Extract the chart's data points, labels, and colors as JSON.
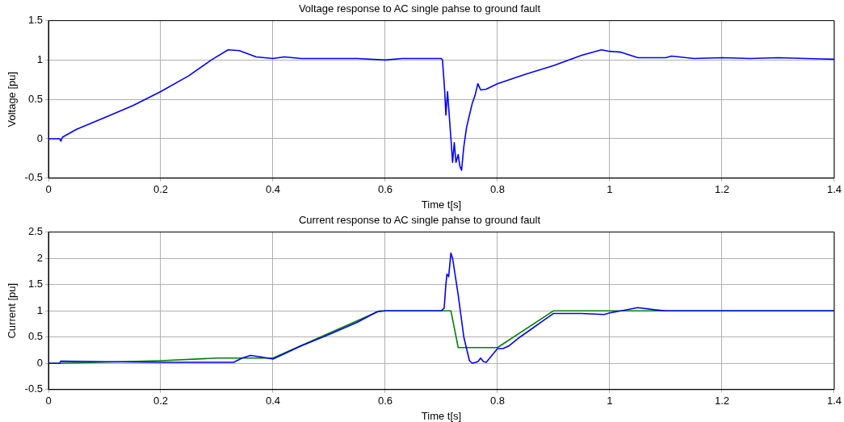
{
  "chart_data": [
    {
      "type": "line",
      "title": "Voltage response to AC single pahse to ground fault",
      "xlabel": "Time t[s]",
      "ylabel": "Voltage [pu]",
      "xlim": [
        0,
        1.4
      ],
      "xticks": [
        0,
        0.2,
        0.4,
        0.6,
        0.8,
        1,
        1.2,
        1.4
      ],
      "ylim": [
        -0.5,
        1.5
      ],
      "yticks": [
        -0.5,
        0,
        0.5,
        1,
        1.5
      ],
      "grid": true,
      "marker": "none",
      "line_style": "solid",
      "series": [
        {
          "color": "#0000ff",
          "x": [
            0,
            0.02,
            0.022,
            0.025,
            0.05,
            0.1,
            0.15,
            0.2,
            0.25,
            0.29,
            0.32,
            0.34,
            0.37,
            0.4,
            0.42,
            0.45,
            0.5,
            0.55,
            0.6,
            0.63,
            0.7,
            0.702,
            0.706,
            0.708,
            0.711,
            0.713,
            0.716,
            0.72,
            0.723,
            0.726,
            0.73,
            0.733,
            0.736,
            0.74,
            0.745,
            0.75,
            0.755,
            0.76,
            0.765,
            0.77,
            0.78,
            0.8,
            0.85,
            0.9,
            0.95,
            0.985,
            1.0,
            1.02,
            1.05,
            1.1,
            1.11,
            1.15,
            1.2,
            1.25,
            1.3,
            1.35,
            1.4
          ],
          "values": [
            0,
            0,
            -0.03,
            0.02,
            0.12,
            0.27,
            0.42,
            0.6,
            0.8,
            1.0,
            1.13,
            1.12,
            1.04,
            1.02,
            1.04,
            1.02,
            1.02,
            1.02,
            1.0,
            1.02,
            1.02,
            1.0,
            0.6,
            0.3,
            0.6,
            0.4,
            0.1,
            -0.3,
            -0.05,
            -0.3,
            -0.2,
            -0.35,
            -0.4,
            -0.1,
            0.15,
            0.3,
            0.45,
            0.55,
            0.7,
            0.62,
            0.63,
            0.7,
            0.82,
            0.93,
            1.06,
            1.13,
            1.11,
            1.1,
            1.03,
            1.03,
            1.05,
            1.02,
            1.03,
            1.02,
            1.03,
            1.02,
            1.01
          ]
        }
      ]
    },
    {
      "type": "line",
      "title": "Current response to AC single pahse to ground fault",
      "xlabel": "Time t[s]",
      "ylabel": "Current [pu]",
      "xlim": [
        0,
        1.4
      ],
      "xticks": [
        0,
        0.2,
        0.4,
        0.6,
        0.8,
        1,
        1.2,
        1.4
      ],
      "ylim": [
        -0.5,
        2.5
      ],
      "yticks": [
        -0.5,
        0,
        0.5,
        1,
        1.5,
        2,
        2.5
      ],
      "grid": true,
      "marker": "none",
      "line_style": "solid",
      "series": [
        {
          "color": "#008000",
          "x": [
            0,
            0.02,
            0.2,
            0.3,
            0.4,
            0.59,
            0.717,
            0.73,
            0.8,
            0.9,
            1.4
          ],
          "values": [
            0,
            0,
            0.05,
            0.1,
            0.1,
            1.0,
            1.0,
            0.3,
            0.3,
            1.0,
            1.0
          ]
        },
        {
          "color": "#0000ff",
          "x": [
            0,
            0.02,
            0.022,
            0.1,
            0.2,
            0.3,
            0.33,
            0.345,
            0.36,
            0.38,
            0.4,
            0.45,
            0.5,
            0.55,
            0.585,
            0.6,
            0.7,
            0.705,
            0.708,
            0.71,
            0.713,
            0.717,
            0.72,
            0.73,
            0.74,
            0.75,
            0.755,
            0.765,
            0.77,
            0.775,
            0.78,
            0.79,
            0.8,
            0.81,
            0.82,
            0.84,
            0.86,
            0.88,
            0.9,
            0.95,
            0.99,
            1.0,
            1.02,
            1.05,
            1.08,
            1.1,
            1.2,
            1.3,
            1.4
          ],
          "values": [
            0,
            0,
            0.04,
            0.03,
            0.02,
            0.02,
            0.02,
            0.1,
            0.15,
            0.12,
            0.08,
            0.33,
            0.55,
            0.78,
            0.98,
            1.0,
            1.0,
            1.05,
            1.5,
            1.7,
            1.65,
            2.1,
            2.0,
            1.3,
            0.5,
            0.05,
            0.0,
            0.03,
            0.1,
            0.03,
            0.02,
            0.15,
            0.28,
            0.28,
            0.33,
            0.5,
            0.65,
            0.8,
            0.95,
            0.95,
            0.93,
            0.96,
            1.0,
            1.06,
            1.02,
            1.0,
            1.0,
            1.0,
            1.0
          ]
        }
      ]
    }
  ]
}
